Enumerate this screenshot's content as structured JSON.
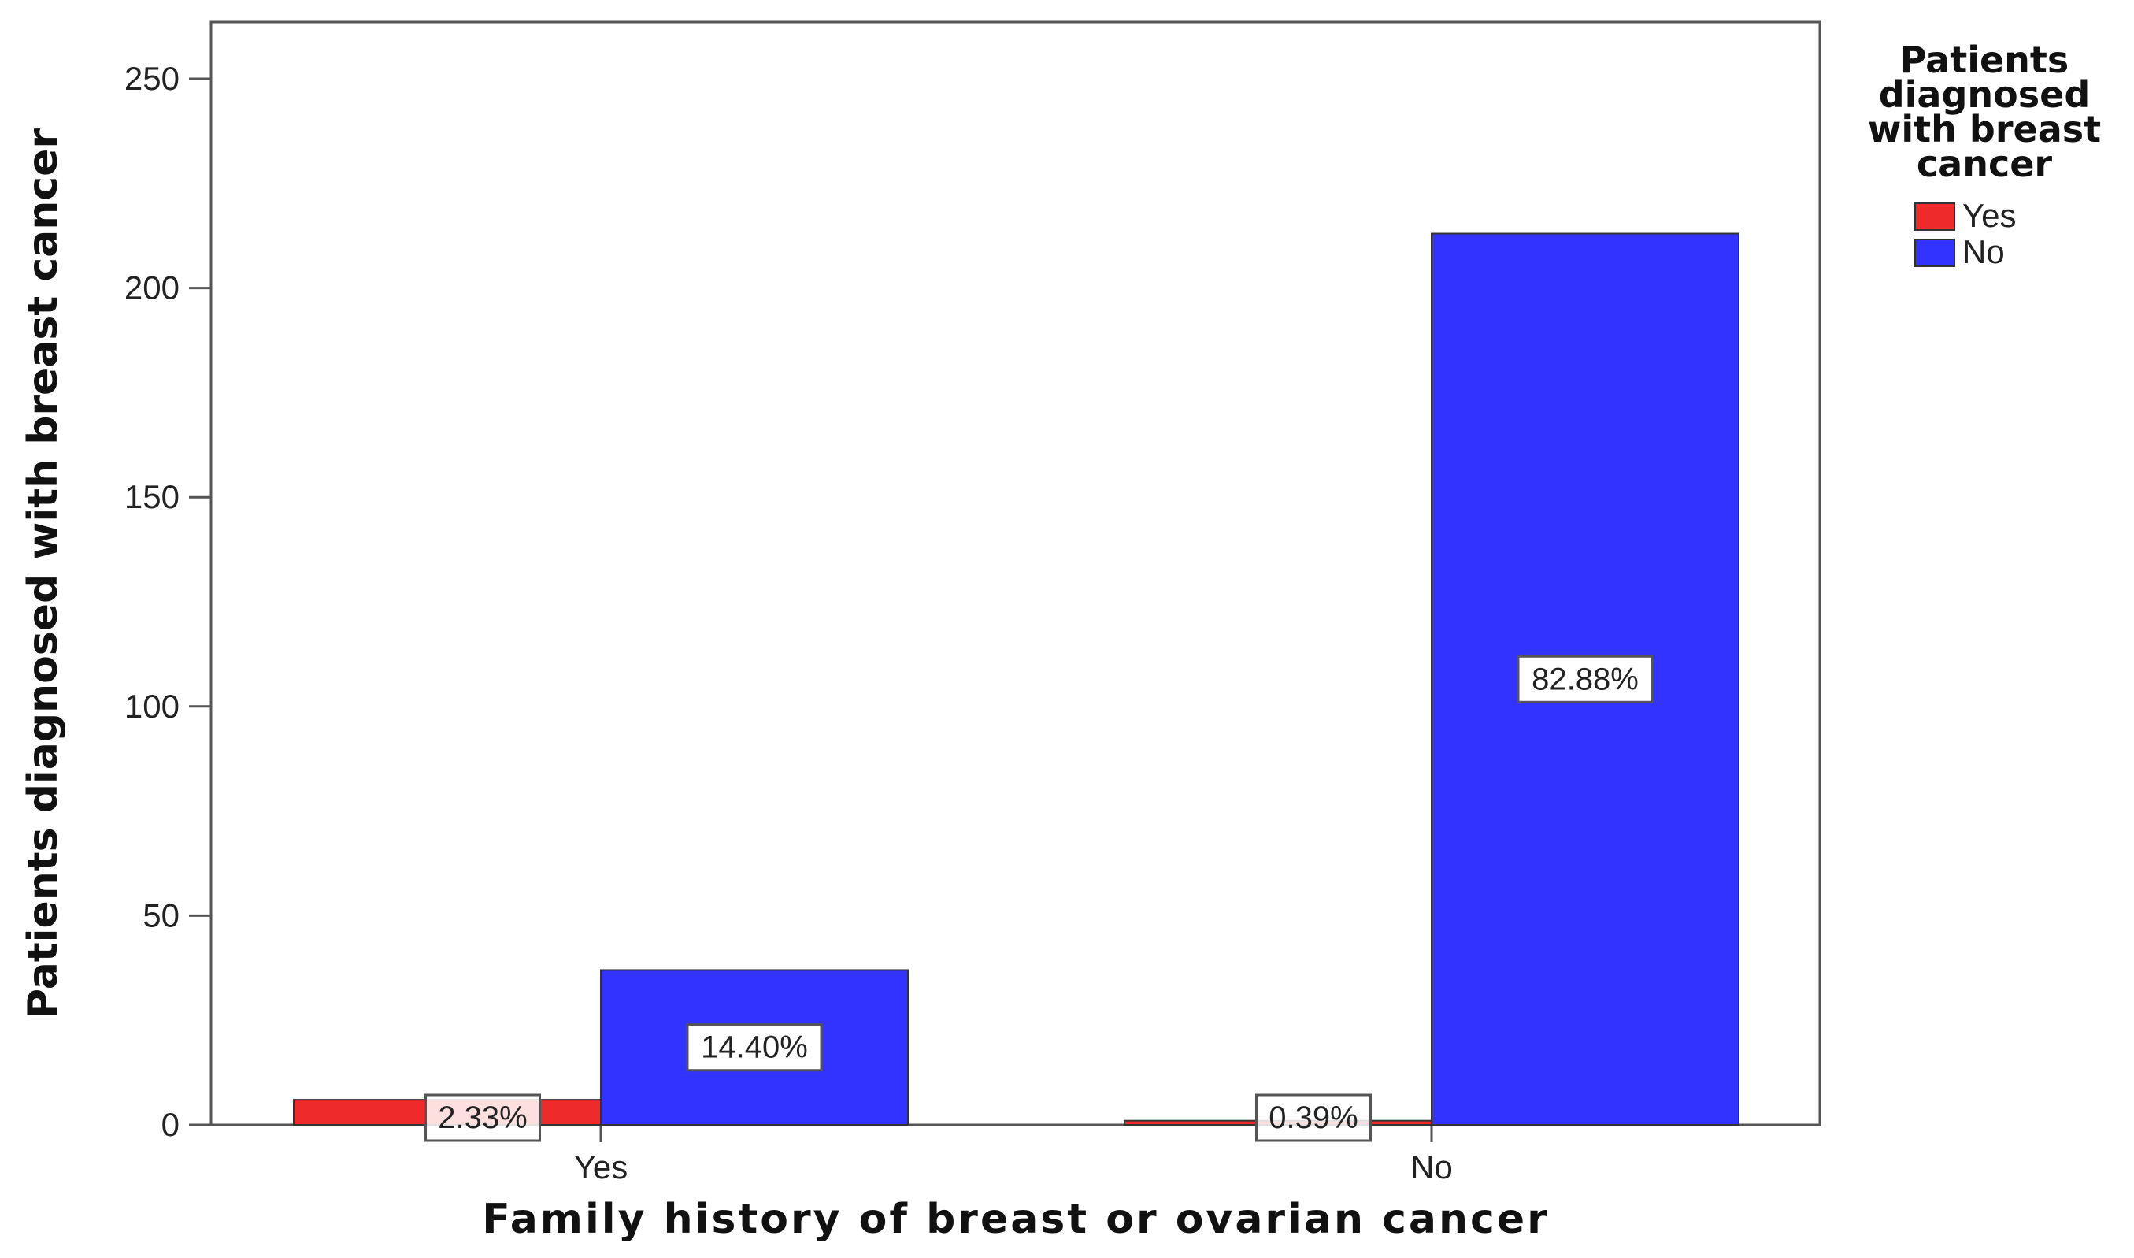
{
  "chart_data": {
    "type": "bar",
    "categories": [
      "Yes",
      "No"
    ],
    "series": [
      {
        "name": "Yes",
        "color": "#ee2a2a",
        "values": [
          6,
          1
        ],
        "labels": [
          "2.33%",
          "0.39%"
        ]
      },
      {
        "name": "No",
        "color": "#3333ff",
        "values": [
          37,
          213
        ],
        "labels": [
          "14.40%",
          "82.88%"
        ]
      }
    ],
    "xlabel": "Family history of breast or ovarian cancer",
    "ylabel": "Patients diagnosed with breast cancer",
    "ylim": [
      0,
      250
    ],
    "yticks": [
      0,
      50,
      100,
      150,
      200,
      250
    ],
    "legend": {
      "title_lines": [
        "Patients",
        "diagnosed",
        "with breast",
        "cancer"
      ],
      "placement": "right"
    },
    "grid": false
  }
}
